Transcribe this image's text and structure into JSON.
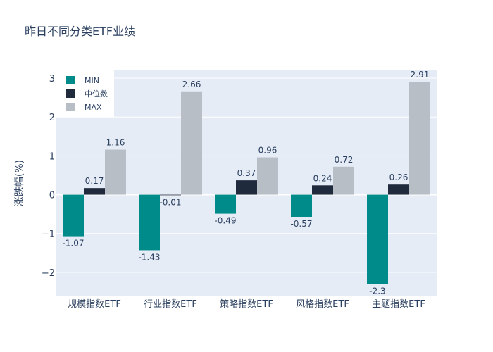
{
  "chart_data": {
    "type": "bar",
    "title": "昨日不同分类ETF业绩",
    "xlabel": "",
    "ylabel": "涨跌幅(%)",
    "categories": [
      "规模指数ETF",
      "行业指数ETF",
      "策略指数ETF",
      "风格指数ETF",
      "主题指数ETF"
    ],
    "series": [
      {
        "name": "MIN",
        "color": "#008b8b",
        "values": [
          -1.07,
          -1.43,
          -0.49,
          -0.57,
          -2.3
        ],
        "labels": [
          "-1.07",
          "-1.43",
          "-0.49",
          "-0.57",
          "-2.3"
        ]
      },
      {
        "name": "中位数",
        "color": "#1f2a3d",
        "values": [
          0.17,
          -0.01,
          0.37,
          0.24,
          0.26
        ],
        "labels": [
          "0.17",
          "-0.01",
          "0.37",
          "0.24",
          "0.26"
        ]
      },
      {
        "name": "MAX",
        "color": "#b8bec6",
        "values": [
          1.16,
          2.66,
          0.96,
          0.72,
          2.91
        ],
        "labels": [
          "1.16",
          "2.66",
          "0.96",
          "0.72",
          "2.91"
        ]
      }
    ],
    "ylim": [
      -2.6,
      3.2
    ],
    "yticks": [
      -2,
      -1,
      0,
      1,
      2,
      3
    ],
    "ytick_labels": [
      "−2",
      "−1",
      "0",
      "1",
      "2",
      "3"
    ],
    "grid": true,
    "legend_position": "top-left",
    "plot_bgcolor": "#e5ecf6"
  }
}
